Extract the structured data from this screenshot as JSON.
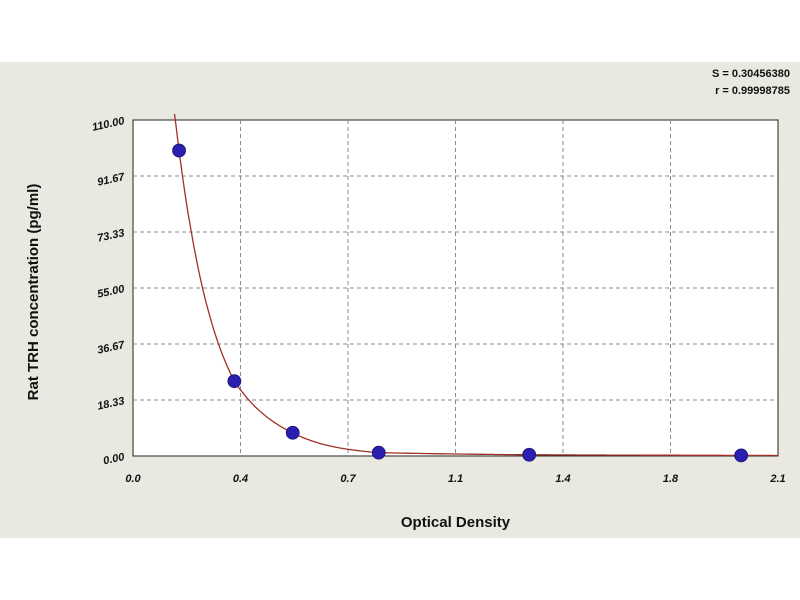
{
  "stats": {
    "s_line": "S = 0.30456380",
    "r_line": "r = 0.99998785"
  },
  "chart_data": {
    "type": "scatter",
    "title": "",
    "xlabel": "Optical Density",
    "ylabel": "Rat TRH concentration (pg/ml)",
    "xlim": [
      0.0,
      2.1
    ],
    "ylim": [
      0.0,
      110.0
    ],
    "x_ticks": [
      "0.0",
      "0.4",
      "0.7",
      "1.1",
      "1.4",
      "1.8",
      "2.1"
    ],
    "y_ticks": [
      "0.00",
      "18.33",
      "36.67",
      "55.00",
      "73.33",
      "91.67",
      "110.00"
    ],
    "grid": true,
    "series": [
      {
        "points": [
          {
            "x": 0.15,
            "y": 100.0
          },
          {
            "x": 0.33,
            "y": 24.5
          },
          {
            "x": 0.52,
            "y": 7.6
          },
          {
            "x": 0.8,
            "y": 1.1
          },
          {
            "x": 1.29,
            "y": 0.4
          },
          {
            "x": 1.98,
            "y": 0.2
          }
        ],
        "marker_color": "#2a1fb0"
      }
    ],
    "fit_curve_color": "#a0302a"
  }
}
